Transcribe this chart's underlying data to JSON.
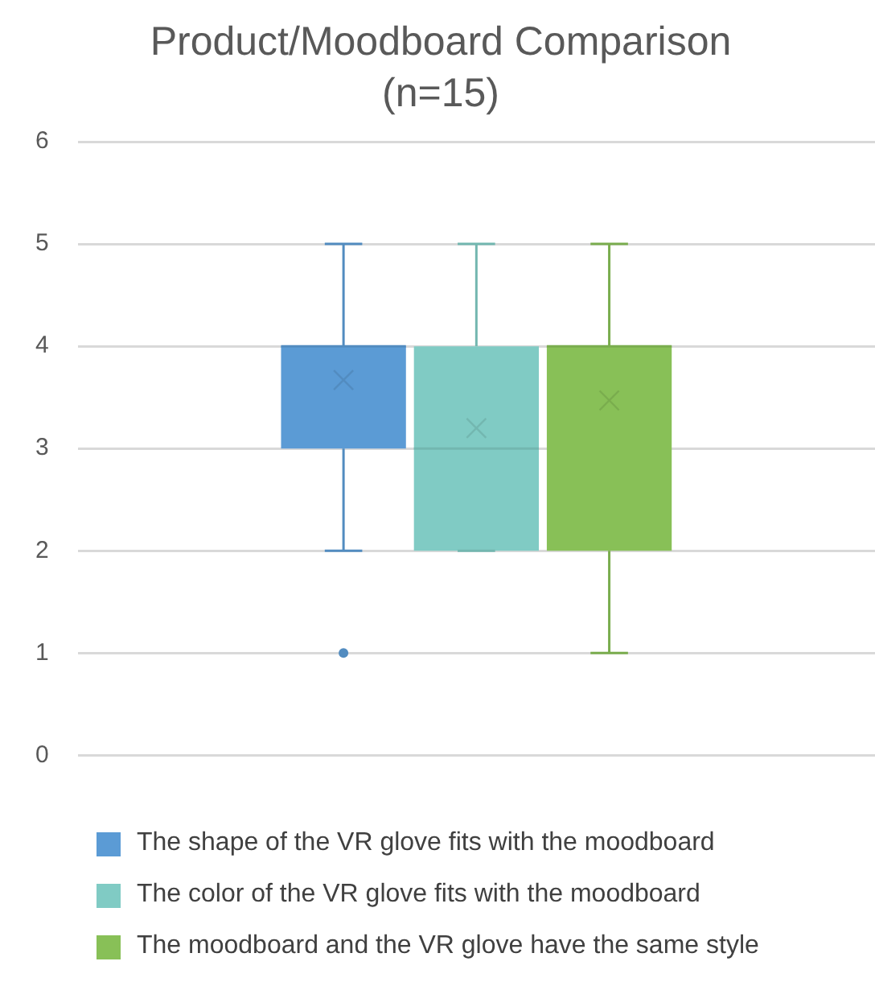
{
  "chart_data": {
    "type": "box",
    "title": "Product/Moodboard Comparison",
    "subtitle": "(n=15)",
    "categories": [
      null
    ],
    "series": [
      {
        "name": "The shape of the VR glove fits with the moodboard",
        "color": "#5b9bd5",
        "boxes": [
          {
            "low": 2,
            "q1": 3,
            "median": 4,
            "q3": 4,
            "high": 5,
            "mean": 3.67,
            "outliers": [
              1
            ]
          }
        ]
      },
      {
        "name": "The color of the VR glove fits with the moodboard",
        "color": "#80cbc4",
        "boxes": [
          {
            "low": 2,
            "q1": 2,
            "median": 3,
            "q3": 4,
            "high": 5,
            "mean": 3.2
          }
        ]
      },
      {
        "name": "The moodboard and the VR glove have the same style",
        "color": "#88c057",
        "boxes": [
          {
            "low": 1,
            "q1": 2,
            "median": 4,
            "q3": 4,
            "high": 5,
            "mean": 3.47
          }
        ]
      }
    ],
    "ylim": [
      0,
      6
    ],
    "yticks": [
      0,
      1,
      2,
      3,
      4,
      5,
      6
    ],
    "grid": "y",
    "legend": "bottom"
  }
}
